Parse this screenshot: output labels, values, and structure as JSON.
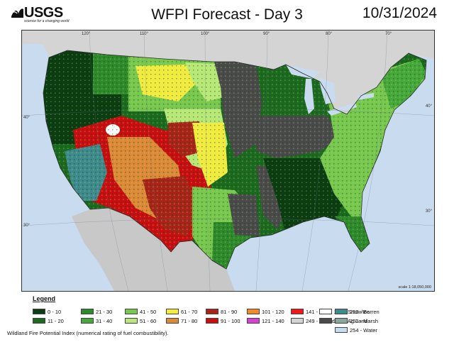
{
  "header": {
    "agency": "USGS",
    "tagline": "science for a changing world",
    "title": "WFPI Forecast - Day 3",
    "date": "10/31/2024"
  },
  "map": {
    "longitude_ticks": [
      "120°",
      "110°",
      "100°",
      "90°",
      "80°",
      "70°"
    ],
    "latitude_ticks": [
      "40°",
      "30°"
    ],
    "scale": "scale 1:18,050,000",
    "colors": {
      "ocean": "#c9dbef",
      "canada": "#d4d4d4",
      "mexico": "#c8c8c8",
      "lakes": "#c9dbef",
      "agland": "#4a4a4a",
      "barren": "#3e8a8c",
      "snow": "#ffffff"
    }
  },
  "legend": {
    "title": "Legend",
    "items": [
      {
        "label": "0 - 10",
        "color": "#0c3d12"
      },
      {
        "label": "11 - 20",
        "color": "#1c6a1f"
      },
      {
        "label": "21 - 30",
        "color": "#2e8a2a"
      },
      {
        "label": "31 - 40",
        "color": "#46a83a"
      },
      {
        "label": "41 - 50",
        "color": "#78c850"
      },
      {
        "label": "51 - 60",
        "color": "#b8e878"
      },
      {
        "label": "61 - 70",
        "color": "#f2ec40"
      },
      {
        "label": "71 - 80",
        "color": "#dc8a38"
      },
      {
        "label": "81 - 90",
        "color": "#a82418"
      },
      {
        "label": "91 - 100",
        "color": "#c80e10"
      },
      {
        "label": "101 - 120",
        "color": "#f08a2a"
      },
      {
        "label": "121 - 140",
        "color": "#d840d8"
      },
      {
        "label": "141 - 247",
        "color": "#f01818"
      },
      {
        "label": "249 - Outside US",
        "color": "#d4d4d4"
      },
      {
        "label": "250 - Snow/Ice",
        "color": "#ffffff"
      },
      {
        "label": "251 - Ag Land",
        "color": "#4a4a4a"
      },
      {
        "label": "252 - Barren",
        "color": "#3e8a8c"
      },
      {
        "label": "253 - Marsh",
        "color": "#8aa89a"
      },
      {
        "label": "254 - Water",
        "color": "#c9dbef"
      }
    ],
    "caption": "Wildland Fire Potential Index (numerical rating of fuel combustibility)."
  }
}
